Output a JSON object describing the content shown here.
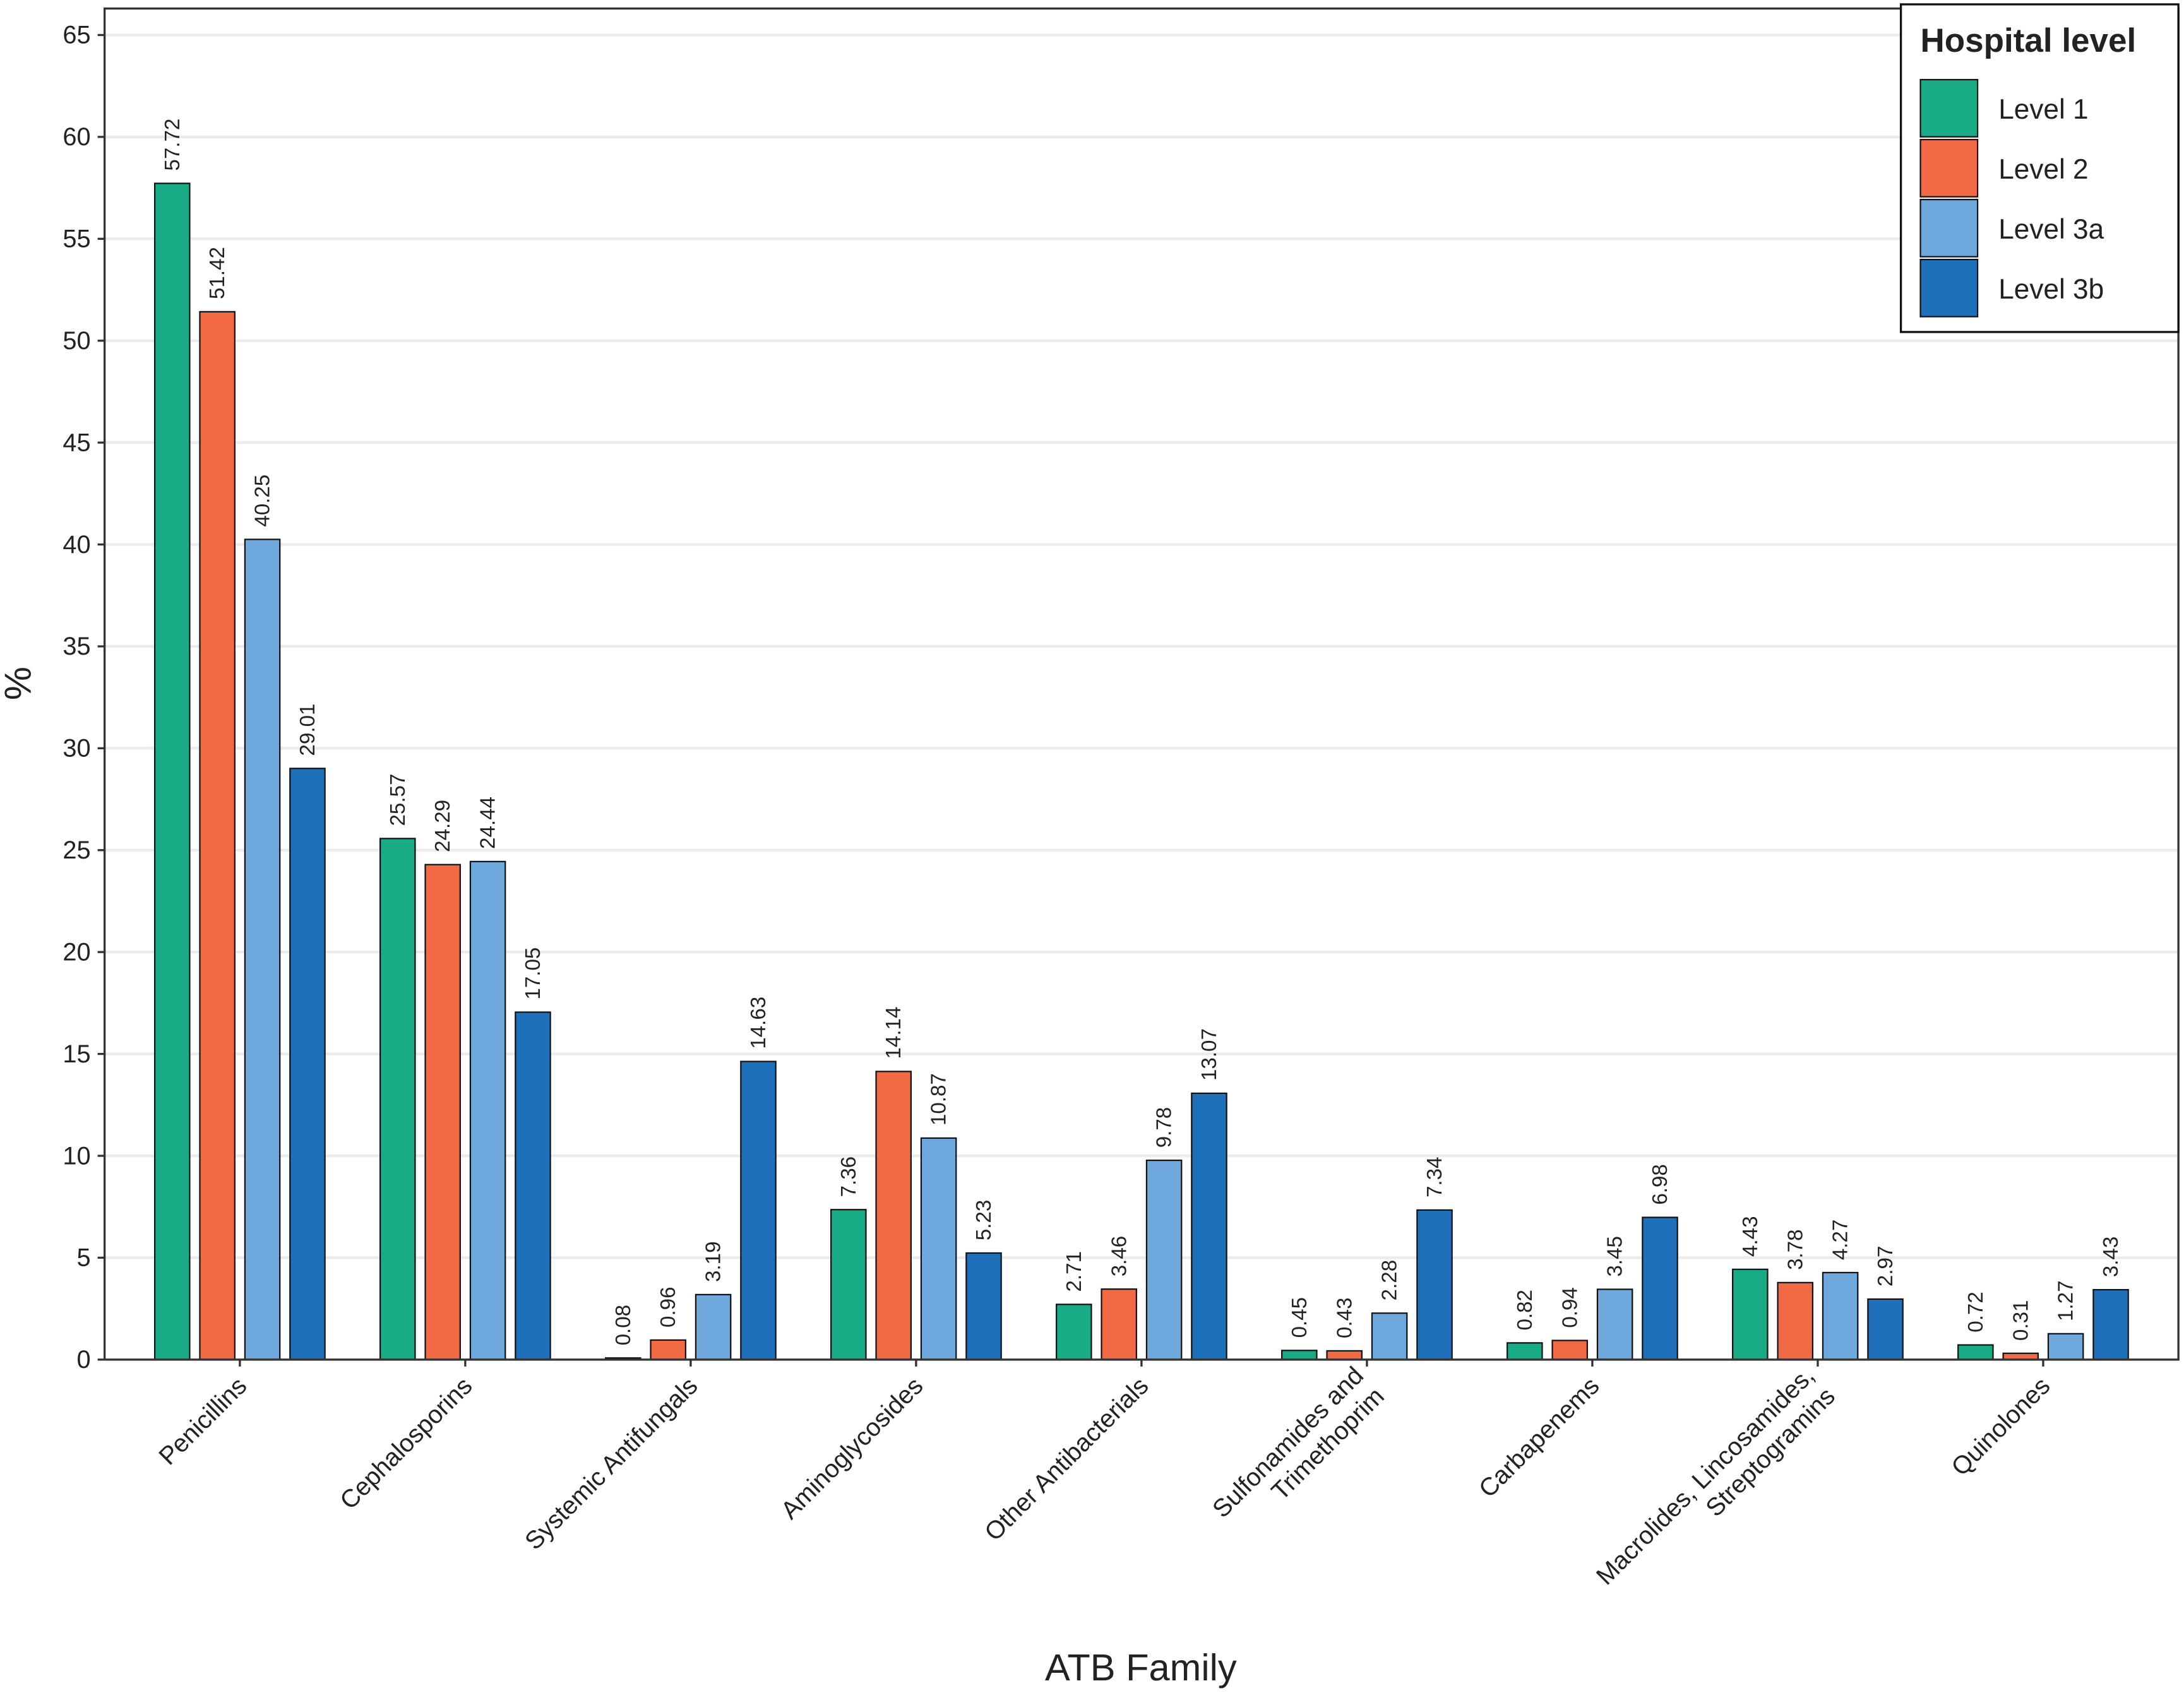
{
  "chart_data": {
    "type": "bar",
    "x_label": "ATB Family",
    "y_label": "%",
    "categories": [
      "Penicillins",
      "Cephalosporins",
      "Systemic Antifungals",
      "Aminoglycosides",
      "Other Antibacterials",
      "Sulfonamides and\nTrimethoprim",
      "Carbapenems",
      "Macrolides, Lincosamides,\nStreptogramins",
      "Quinolones"
    ],
    "legend_title": "Hospital level",
    "legend_position": "top-right",
    "series": [
      {
        "name": "Level 1",
        "color": "#18ab86",
        "values": [
          57.72,
          25.57,
          0.08,
          7.36,
          2.71,
          0.45,
          0.82,
          4.43,
          0.72
        ]
      },
      {
        "name": "Level 2",
        "color": "#f26a43",
        "values": [
          51.42,
          24.29,
          0.96,
          14.14,
          3.46,
          0.43,
          0.94,
          3.78,
          0.31
        ]
      },
      {
        "name": "Level 3a",
        "color": "#6fa8dc",
        "values": [
          40.25,
          24.44,
          3.19,
          10.87,
          9.78,
          2.28,
          3.45,
          4.27,
          1.27
        ]
      },
      {
        "name": "Level 3b",
        "color": "#1f70ba",
        "values": [
          29.01,
          17.05,
          14.63,
          5.23,
          13.07,
          7.34,
          6.98,
          2.97,
          3.43
        ]
      }
    ],
    "ylim": [
      0,
      66.3
    ],
    "yticks": [
      0,
      5,
      10,
      15,
      20,
      25,
      30,
      35,
      40,
      45,
      50,
      55,
      60,
      65
    ],
    "grid": true
  }
}
